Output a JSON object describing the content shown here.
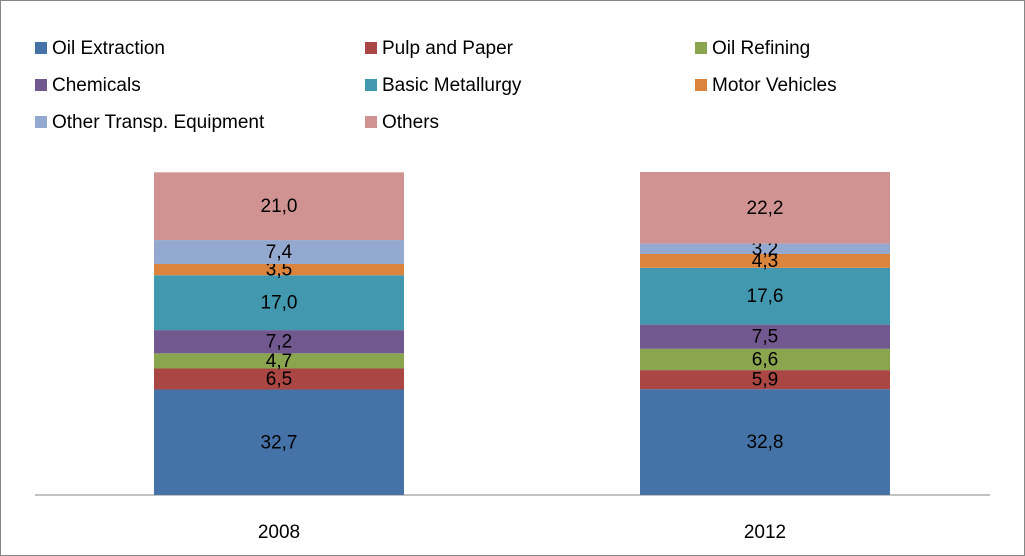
{
  "chart_data": {
    "type": "stacked_bar",
    "categories": [
      "2008",
      "2012"
    ],
    "series": [
      {
        "name": "Oil Extraction",
        "color": "#4572a7",
        "values": [
          32.7,
          32.8
        ],
        "value_labels": [
          "32,7",
          "32,8"
        ]
      },
      {
        "name": "Pulp and Paper",
        "color": "#aa4643",
        "values": [
          6.5,
          5.9
        ],
        "value_labels": [
          "6,5",
          "5,9"
        ]
      },
      {
        "name": "Oil Refining",
        "color": "#89a54e",
        "values": [
          4.7,
          6.6
        ],
        "value_labels": [
          "4,7",
          "6,6"
        ]
      },
      {
        "name": "Chemicals",
        "color": "#71588f",
        "values": [
          7.2,
          7.5
        ],
        "value_labels": [
          "7,2",
          "7,5"
        ]
      },
      {
        "name": "Basic Metallurgy",
        "color": "#4198af",
        "values": [
          17.0,
          17.6
        ],
        "value_labels": [
          "17,0",
          "17,6"
        ]
      },
      {
        "name": "Motor Vehicles",
        "color": "#db843d",
        "values": [
          3.5,
          4.3
        ],
        "value_labels": [
          "3,5",
          "4,3"
        ]
      },
      {
        "name": "Other Transp. Equipment",
        "color": "#93a9cf",
        "values": [
          7.4,
          3.2
        ],
        "value_labels": [
          "7,4",
          "3,2"
        ]
      },
      {
        "name": "Others",
        "color": "#d19392",
        "values": [
          21.0,
          22.2
        ],
        "value_labels": [
          "21,0",
          "22,2"
        ]
      }
    ],
    "legend": "top"
  }
}
